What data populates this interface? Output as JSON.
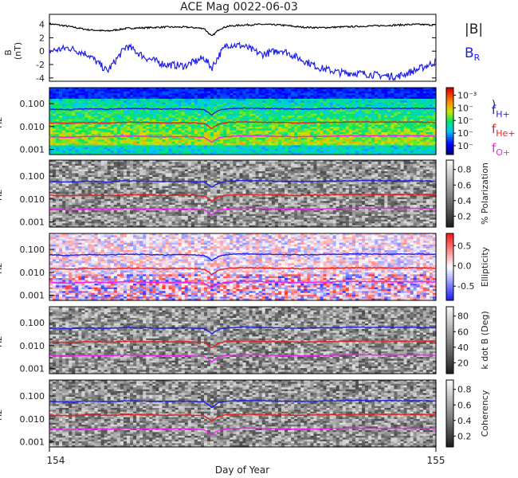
{
  "title": "ACE Mag 0022-06-03",
  "xaxis": {
    "label": "Day of Year",
    "ticks": [
      154,
      155
    ],
    "range": [
      154,
      155
    ]
  },
  "colors": {
    "B_total": "#000000",
    "B_R": "#1f1fe6",
    "f_H": "#1f1fe6",
    "f_He": "#e61f1f",
    "f_O": "#ee22ee"
  },
  "chart_data": [
    {
      "type": "line",
      "title": "ACE Mag 0022-06-03",
      "ylabel": "B (nT)",
      "ylim": [
        -4.5,
        5.5
      ],
      "yticks": [
        -4,
        -2,
        0,
        2,
        4
      ],
      "legend": [
        "|B|",
        "B_R"
      ],
      "legend_placement": "right",
      "series": [
        {
          "name": "|B|",
          "color": "#000000",
          "x": [
            154.0,
            154.05,
            154.1,
            154.15,
            154.2,
            154.25,
            154.3,
            154.35,
            154.4,
            154.42,
            154.44,
            154.46,
            154.5,
            154.55,
            154.6,
            154.65,
            154.7,
            154.75,
            154.8,
            154.85,
            154.9,
            154.95,
            155.0
          ],
          "values": [
            4.1,
            3.7,
            3.2,
            3.0,
            3.4,
            3.5,
            3.6,
            3.6,
            3.4,
            2.2,
            3.3,
            3.7,
            3.9,
            4.0,
            3.9,
            3.6,
            3.5,
            3.6,
            3.7,
            3.8,
            3.9,
            4.0,
            3.9
          ]
        },
        {
          "name": "B_R",
          "color": "#1f1fe6",
          "x": [
            154.0,
            154.05,
            154.1,
            154.15,
            154.2,
            154.25,
            154.3,
            154.35,
            154.4,
            154.42,
            154.44,
            154.46,
            154.5,
            154.55,
            154.6,
            154.65,
            154.7,
            154.75,
            154.8,
            154.85,
            154.9,
            154.95,
            155.0
          ],
          "values": [
            0.0,
            0.5,
            -0.5,
            -3.0,
            0.8,
            -1.0,
            -2.0,
            -2.2,
            -1.0,
            -2.5,
            -0.5,
            1.0,
            0.8,
            -0.5,
            0.2,
            -1.2,
            -2.5,
            -3.2,
            -3.3,
            -3.6,
            -3.8,
            -2.8,
            -1.6
          ]
        }
      ]
    },
    {
      "type": "heatmap",
      "ylabel": "Hz",
      "yscale": "log",
      "ylim": [
        0.0006,
        0.5
      ],
      "yticks": [
        "0.001",
        "0.010",
        "0.100"
      ],
      "colorbar": {
        "label": "",
        "ticks": [
          "10⁻",
          "10⁻",
          "10⁻",
          "10⁻",
          "10⁻³"
        ],
        "colormap": "rainbow"
      },
      "legend": [
        "f_H+",
        "f_He+",
        "f_O+"
      ],
      "lines": {
        "f_H+": [
          0.058,
          0.055,
          0.06,
          0.057,
          0.062,
          0.06,
          0.058,
          0.06,
          0.055,
          0.032,
          0.052,
          0.06,
          0.064,
          0.062,
          0.06,
          0.058,
          0.06,
          0.062,
          0.064,
          0.063,
          0.062,
          0.063,
          0.061
        ],
        "f_He+": [
          0.0145,
          0.0138,
          0.015,
          0.0142,
          0.0155,
          0.015,
          0.0145,
          0.015,
          0.0138,
          0.008,
          0.013,
          0.015,
          0.016,
          0.0155,
          0.015,
          0.0145,
          0.015,
          0.0155,
          0.016,
          0.0158,
          0.0155,
          0.0158,
          0.0152
        ],
        "f_O+": [
          0.0036,
          0.0034,
          0.0037,
          0.0036,
          0.0039,
          0.0037,
          0.0036,
          0.0037,
          0.0034,
          0.002,
          0.0033,
          0.0037,
          0.004,
          0.0039,
          0.0037,
          0.0036,
          0.0037,
          0.0039,
          0.004,
          0.0039,
          0.0039,
          0.0039,
          0.0038
        ]
      }
    },
    {
      "type": "heatmap",
      "ylabel": "Hz",
      "yscale": "log",
      "colorbar": {
        "label": "% Polarization",
        "ticks": [
          "0.2",
          "0.4",
          "0.6",
          "0.8"
        ],
        "colormap": "gray"
      }
    },
    {
      "type": "heatmap",
      "ylabel": "Hz",
      "yscale": "log",
      "colorbar": {
        "label": "Ellipticity",
        "ticks": [
          "-0.5",
          "0.0",
          "0.5"
        ],
        "colormap": "blue-white-red"
      }
    },
    {
      "type": "heatmap",
      "ylabel": "Hz",
      "yscale": "log",
      "colorbar": {
        "label": "k dot B (Deg)",
        "ticks": [
          "20",
          "40",
          "60",
          "80"
        ],
        "colormap": "gray"
      }
    },
    {
      "type": "heatmap",
      "ylabel": "Hz",
      "yscale": "log",
      "colorbar": {
        "label": "Coherency",
        "ticks": [
          "0.2",
          "0.4",
          "0.6",
          "0.8"
        ],
        "colormap": "gray"
      }
    }
  ],
  "labels": {
    "b_axis_line1": "B",
    "b_axis_line2": "(nT)",
    "legend_Btot": "|B|",
    "legend_BR": "B",
    "legend_BR_sub": "R",
    "f_label": "f",
    "sub_H": "H+",
    "sub_He": "He+",
    "sub_O": "O+",
    "paren": ")"
  }
}
